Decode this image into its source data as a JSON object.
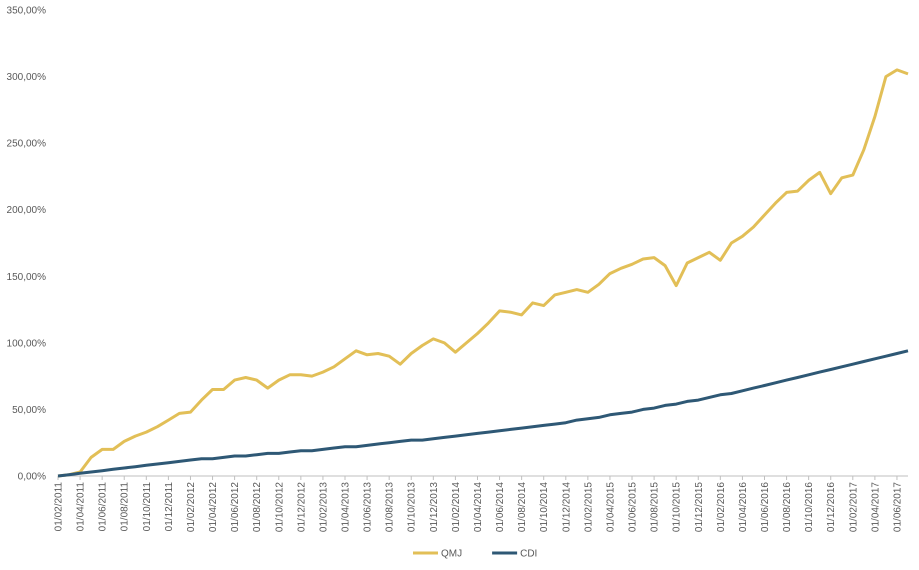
{
  "chart_data": {
    "type": "line",
    "categories": [
      "01/02/2011",
      null,
      "01/04/2011",
      null,
      "01/06/2011",
      null,
      "01/08/2011",
      null,
      "01/10/2011",
      null,
      "01/12/2011",
      null,
      "01/02/2012",
      null,
      "01/04/2012",
      null,
      "01/06/2012",
      null,
      "01/08/2012",
      null,
      "01/10/2012",
      null,
      "01/12/2012",
      null,
      "01/02/2013",
      null,
      "01/04/2013",
      null,
      "01/06/2013",
      null,
      "01/08/2013",
      null,
      "01/10/2013",
      null,
      "01/12/2013",
      null,
      "01/02/2014",
      null,
      "01/04/2014",
      null,
      "01/06/2014",
      null,
      "01/08/2014",
      null,
      "01/10/2014",
      null,
      "01/12/2014",
      null,
      "01/02/2015",
      null,
      "01/04/2015",
      null,
      "01/06/2015",
      null,
      "01/08/2015",
      null,
      "01/10/2015",
      null,
      "01/12/2015",
      null,
      "01/02/2016",
      null,
      "01/04/2016",
      null,
      "01/06/2016",
      null,
      "01/08/2016",
      null,
      "01/10/2016",
      null,
      "01/12/2016",
      null,
      "01/02/2017",
      null,
      "01/04/2017",
      null,
      "01/06/2017",
      null
    ],
    "series": [
      {
        "name": "QMJ",
        "color": "#e2bf57",
        "values": [
          0,
          1,
          3,
          14,
          20,
          20,
          26,
          30,
          33,
          37,
          42,
          47,
          48,
          57,
          65,
          65,
          72,
          74,
          72,
          66,
          72,
          76,
          76,
          75,
          78,
          82,
          88,
          94,
          91,
          92,
          90,
          84,
          92,
          98,
          103,
          100,
          93,
          100,
          107,
          115,
          124,
          123,
          121,
          130,
          128,
          136,
          138,
          140,
          138,
          144,
          152,
          156,
          159,
          163,
          164,
          158,
          143,
          160,
          164,
          168,
          162,
          175,
          180,
          187,
          196,
          205,
          213,
          214,
          222,
          228,
          212,
          224,
          226,
          245,
          270,
          300,
          305,
          302
        ]
      },
      {
        "name": "CDI",
        "color": "#2e5875",
        "values": [
          0,
          1,
          2,
          3,
          4,
          5,
          6,
          7,
          8,
          9,
          10,
          11,
          12,
          13,
          13,
          14,
          15,
          15,
          16,
          17,
          17,
          18,
          19,
          19,
          20,
          21,
          22,
          22,
          23,
          24,
          25,
          26,
          27,
          27,
          28,
          29,
          30,
          31,
          32,
          33,
          34,
          35,
          36,
          37,
          38,
          39,
          40,
          42,
          43,
          44,
          46,
          47,
          48,
          50,
          51,
          53,
          54,
          56,
          57,
          59,
          61,
          62,
          64,
          66,
          68,
          70,
          72,
          74,
          76,
          78,
          80,
          82,
          84,
          86,
          88,
          90,
          92,
          94
        ]
      }
    ],
    "ylim": [
      0,
      350
    ],
    "yticks": [
      {
        "value": 0,
        "label": "0,00%"
      },
      {
        "value": 50,
        "label": "50,00%"
      },
      {
        "value": 100,
        "label": "100,00%"
      },
      {
        "value": 150,
        "label": "150,00%"
      },
      {
        "value": 200,
        "label": "200,00%"
      },
      {
        "value": 250,
        "label": "250,00%"
      },
      {
        "value": 300,
        "label": "300,00%"
      },
      {
        "value": 350,
        "label": "350,00%"
      }
    ],
    "grid": false,
    "legend": "bottom"
  }
}
